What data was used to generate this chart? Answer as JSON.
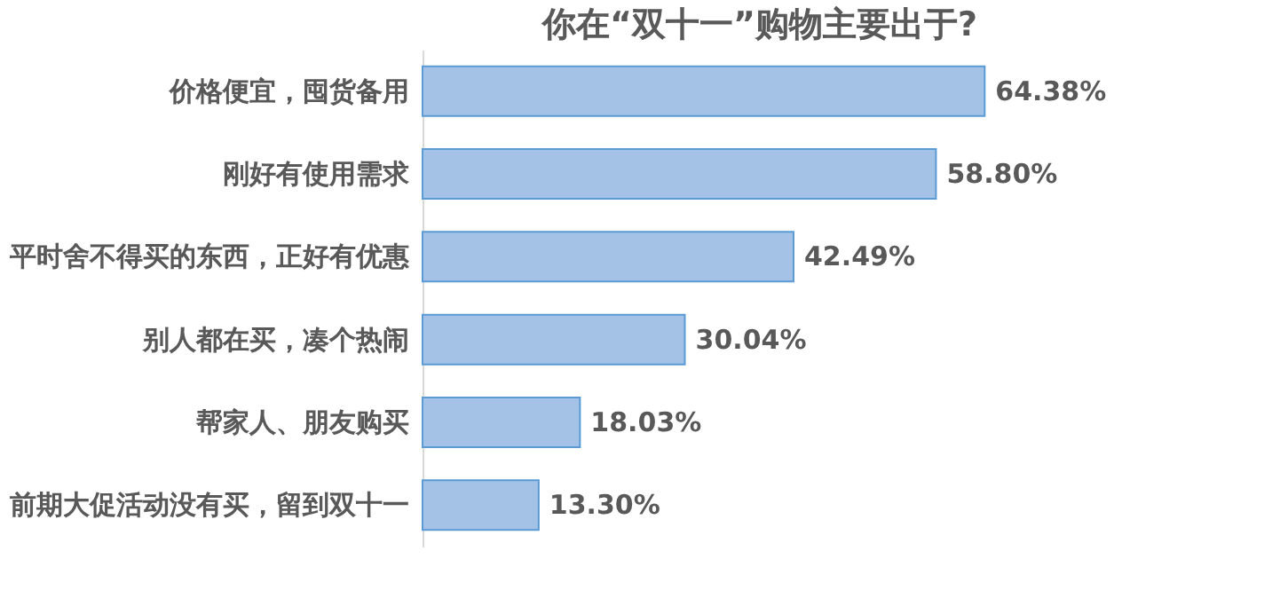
{
  "chart_data": {
    "type": "bar",
    "orientation": "horizontal",
    "title": "你在“双十一”购物主要出于?",
    "categories": [
      "价格便宜，囤货备用",
      "刚好有使用需求",
      "平时舍不得买的东西，正好有优惠",
      "别人都在买，凑个热闹",
      "帮家人、朋友购买",
      "前期大促活动没有买，留到双十一"
    ],
    "values": [
      64.38,
      58.8,
      42.49,
      30.04,
      18.03,
      13.3
    ],
    "value_labels": [
      "64.38%",
      "58.80%",
      "42.49%",
      "30.04%",
      "18.03%",
      "13.30%"
    ],
    "color": "#a3c2e6",
    "grid": false
  }
}
